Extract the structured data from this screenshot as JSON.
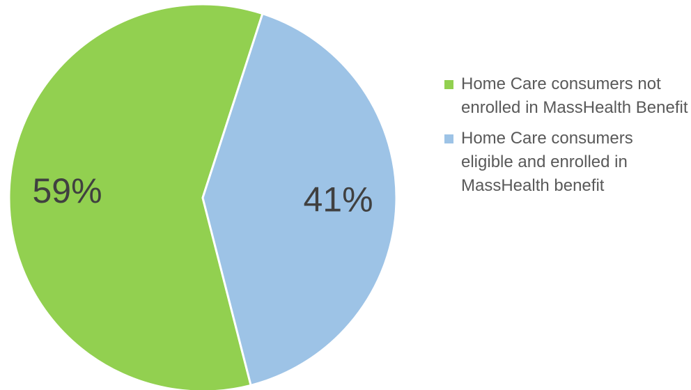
{
  "chart_data": {
    "type": "pie",
    "categories": [
      "Home Care consumers not enrolled in MassHealth Benefit",
      "Home Care consumers eligible and enrolled in MassHealth benefit"
    ],
    "values": [
      59,
      41
    ],
    "value_labels": [
      "59%",
      "41%"
    ],
    "colors": [
      "#92d050",
      "#9dc3e6"
    ],
    "legend": "right"
  }
}
